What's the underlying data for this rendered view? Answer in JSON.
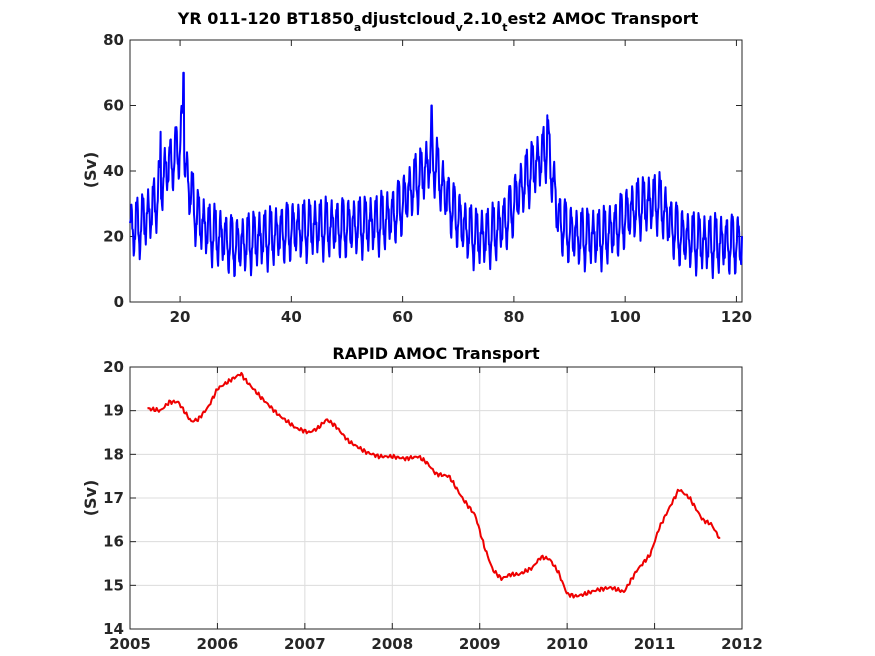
{
  "chart_data": [
    {
      "type": "line",
      "title_parts": [
        "YR 011-120 BT1850",
        "a",
        "djustcloud",
        "v",
        "2.10",
        "t",
        "est2 AMOC Transport"
      ],
      "xlabel": "",
      "ylabel": "(Sv)",
      "xlim": [
        11,
        121
      ],
      "ylim": [
        0,
        80
      ],
      "xticks": [
        20,
        40,
        60,
        80,
        100,
        120
      ],
      "yticks": [
        0,
        20,
        40,
        60,
        80
      ],
      "grid": false,
      "color": "#0000ff",
      "baseline": {
        "x": [
          11,
          13,
          15,
          17,
          18,
          19,
          20,
          20.5,
          21,
          22,
          23,
          25,
          27,
          30,
          33,
          36,
          40,
          45,
          50,
          55,
          58,
          60,
          62,
          64,
          65,
          66,
          67,
          69,
          71,
          73,
          75,
          77,
          79,
          81,
          83,
          85,
          86,
          87,
          88,
          90,
          92,
          94,
          96,
          98,
          100,
          102,
          104,
          106,
          107,
          108,
          110,
          112,
          115,
          118,
          121
        ],
        "y": [
          22,
          24,
          28,
          38,
          42,
          44,
          48,
          56,
          40,
          33,
          26,
          22,
          20,
          17,
          19,
          20,
          22,
          23,
          23,
          24,
          26,
          30,
          36,
          40,
          44,
          42,
          36,
          28,
          23,
          20,
          20,
          22,
          26,
          34,
          40,
          44,
          48,
          38,
          25,
          21,
          20,
          20,
          20,
          22,
          26,
          29,
          30,
          31,
          28,
          24,
          20,
          19,
          18,
          18,
          18
        ]
      },
      "amplitude": 8,
      "spikes": [
        {
          "x": 20.6,
          "y": 70
        },
        {
          "x": 65.2,
          "y": 60
        },
        {
          "x": 86.0,
          "y": 57
        },
        {
          "x": 16.5,
          "y": 52
        }
      ]
    },
    {
      "type": "line",
      "title": "RAPID AMOC Transport",
      "xlabel": "",
      "ylabel": "(Sv)",
      "xlim": [
        2005,
        2012
      ],
      "ylim": [
        14,
        20
      ],
      "xticks": [
        2005,
        2006,
        2007,
        2008,
        2009,
        2010,
        2011,
        2012
      ],
      "yticks": [
        14,
        15,
        16,
        17,
        18,
        19,
        20
      ],
      "grid": true,
      "color": "#ee0000",
      "x": [
        2005.2,
        2005.35,
        2005.45,
        2005.55,
        2005.7,
        2005.78,
        2005.9,
        2006.0,
        2006.15,
        2006.27,
        2006.32,
        2006.5,
        2006.7,
        2006.9,
        2007.05,
        2007.15,
        2007.25,
        2007.35,
        2007.5,
        2007.7,
        2007.85,
        2008.0,
        2008.15,
        2008.3,
        2008.4,
        2008.5,
        2008.65,
        2008.8,
        2008.95,
        2009.05,
        2009.15,
        2009.25,
        2009.35,
        2009.45,
        2009.6,
        2009.7,
        2009.8,
        2009.9,
        2010.0,
        2010.1,
        2010.2,
        2010.35,
        2010.5,
        2010.65,
        2010.8,
        2010.95,
        2011.05,
        2011.15,
        2011.28,
        2011.4,
        2011.55,
        2011.65,
        2011.75
      ],
      "y": [
        19.05,
        19.0,
        19.2,
        19.2,
        18.75,
        18.8,
        19.1,
        19.5,
        19.7,
        19.85,
        19.7,
        19.3,
        18.9,
        18.6,
        18.5,
        18.6,
        18.8,
        18.65,
        18.3,
        18.05,
        17.95,
        17.95,
        17.9,
        17.95,
        17.8,
        17.55,
        17.5,
        17.0,
        16.6,
        15.9,
        15.35,
        15.15,
        15.25,
        15.25,
        15.4,
        15.65,
        15.6,
        15.3,
        14.8,
        14.75,
        14.8,
        14.9,
        14.95,
        14.85,
        15.35,
        15.7,
        16.3,
        16.7,
        17.2,
        17.0,
        16.5,
        16.4,
        16.05
      ]
    }
  ]
}
